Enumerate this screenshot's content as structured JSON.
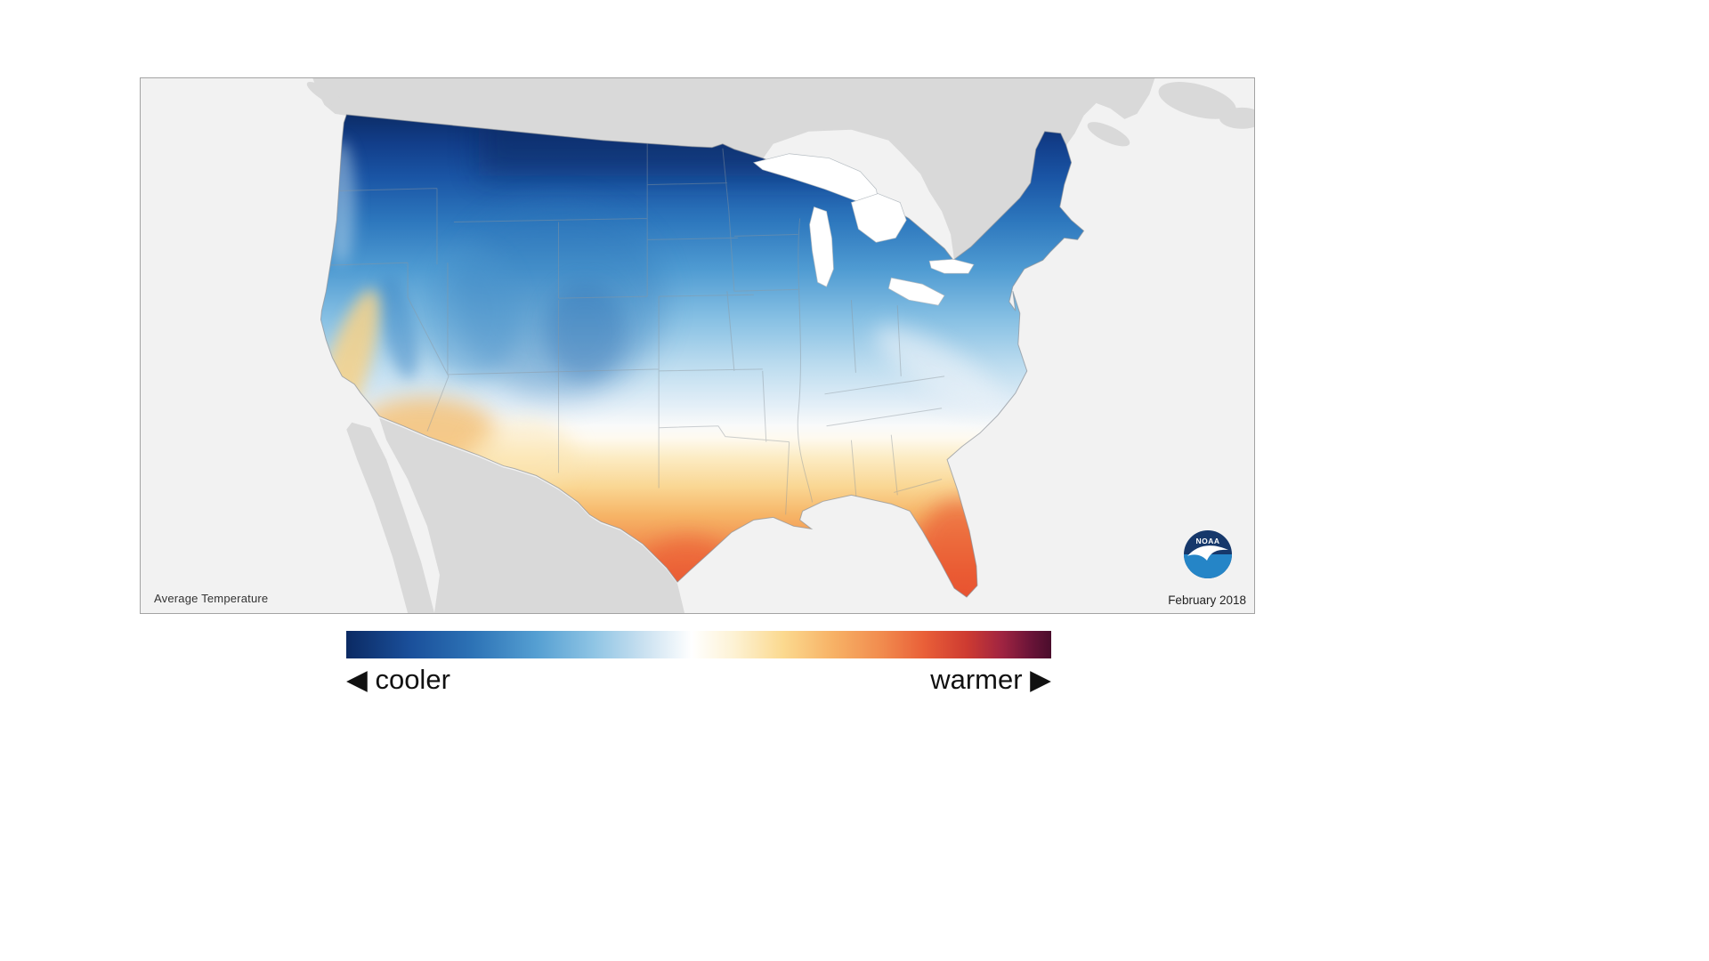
{
  "map": {
    "title": "Average Temperature",
    "date": "February 2018",
    "logo_text": "NOAA",
    "background_color": "#f2f2f2",
    "land_color": "#d9d9d9",
    "lake_color": "#ffffff",
    "border_color": "#a3a3a3",
    "outline_color": "#8b9298",
    "temperature_stops": [
      [
        0.0,
        "#0c2d68"
      ],
      [
        0.06,
        "#123e8a"
      ],
      [
        0.13,
        "#1a55a5"
      ],
      [
        0.22,
        "#2d77bd"
      ],
      [
        0.32,
        "#4f9bd2"
      ],
      [
        0.42,
        "#85bfe3"
      ],
      [
        0.52,
        "#bcdcef"
      ],
      [
        0.6,
        "#e2eef7"
      ],
      [
        0.645,
        "#f9fafa"
      ],
      [
        0.67,
        "#fefaf0"
      ],
      [
        0.71,
        "#fcecc4"
      ],
      [
        0.77,
        "#fad794"
      ],
      [
        0.83,
        "#f6b567"
      ],
      [
        0.89,
        "#f29050"
      ],
      [
        0.95,
        "#ed6f3e"
      ],
      [
        1.0,
        "#e85936"
      ]
    ]
  },
  "legend": {
    "left_label": "◀ cooler",
    "right_label": "warmer ▶",
    "gradient_stops": [
      "#0b2a63 0%",
      "#1a4f9a 9%",
      "#2d73b6 18%",
      "#559fd2 27%",
      "#8ec4e4 35%",
      "#c8e0f0 42%",
      "#ffffff 49%",
      "#fdf2d4 55%",
      "#fbd98f 62%",
      "#f7b266 69%",
      "#f18b4e 76%",
      "#e95f38 82%",
      "#ce3b31 88%",
      "#a02441 93%",
      "#6b1438 97%",
      "#4a0d2c 100%"
    ]
  }
}
